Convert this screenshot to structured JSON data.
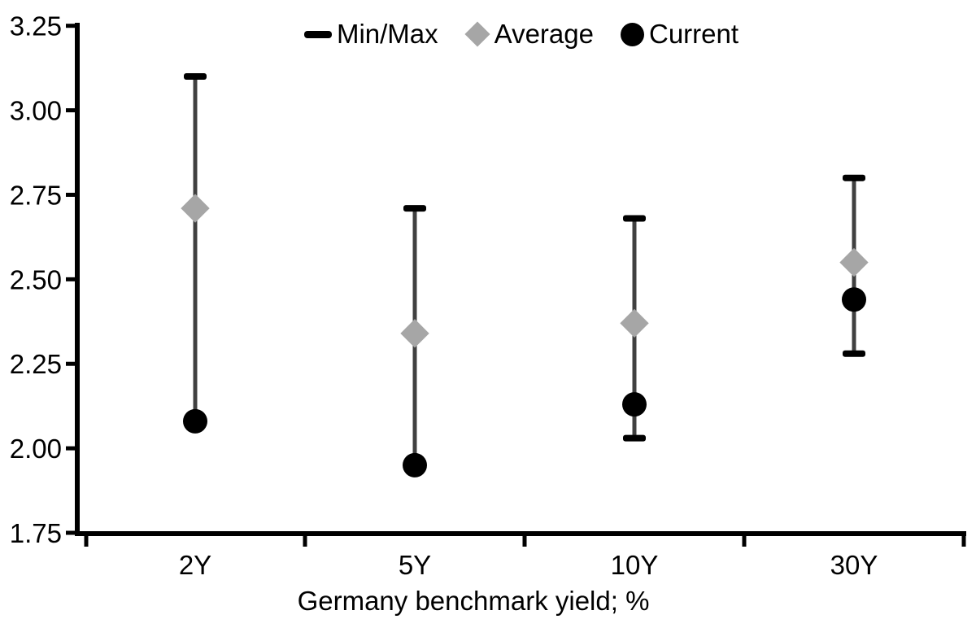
{
  "legend": {
    "items": [
      {
        "label": "Min/Max",
        "marker": "dash-icon",
        "color": "#000000"
      },
      {
        "label": "Average",
        "marker": "diamond-icon",
        "color": "#a6a6a6"
      },
      {
        "label": "Current",
        "marker": "circle-icon",
        "color": "#000000"
      }
    ]
  },
  "chart_data": {
    "type": "scatter",
    "subtype": "min-max-range-dot-plot",
    "categories": [
      "2Y",
      "5Y",
      "10Y",
      "30Y"
    ],
    "series": [
      {
        "name": "Min/Max",
        "role": "range",
        "min": [
          2.08,
          1.95,
          2.03,
          2.28
        ],
        "max": [
          3.1,
          2.71,
          2.68,
          2.8
        ]
      },
      {
        "name": "Average",
        "role": "marker",
        "values": [
          2.71,
          2.34,
          2.37,
          2.55
        ]
      },
      {
        "name": "Current",
        "role": "marker",
        "values": [
          2.08,
          1.95,
          2.13,
          2.44
        ]
      }
    ],
    "title": "",
    "xlabel": "Germany benchmark yield; %",
    "ylabel": "",
    "ylim": [
      1.75,
      3.25
    ],
    "ytick_step": 0.25,
    "yticks": [
      "3.25",
      "3.00",
      "2.75",
      "2.50",
      "2.25",
      "2.00",
      "1.75"
    ],
    "grid": false,
    "legend_position": "top-center"
  },
  "style": {
    "background": "#ffffff",
    "text_color": "#000000",
    "axis_color": "#000000",
    "range_line_color": "#404040",
    "cap_color": "#000000",
    "average_color": "#a6a6a6",
    "current_color": "#000000"
  }
}
